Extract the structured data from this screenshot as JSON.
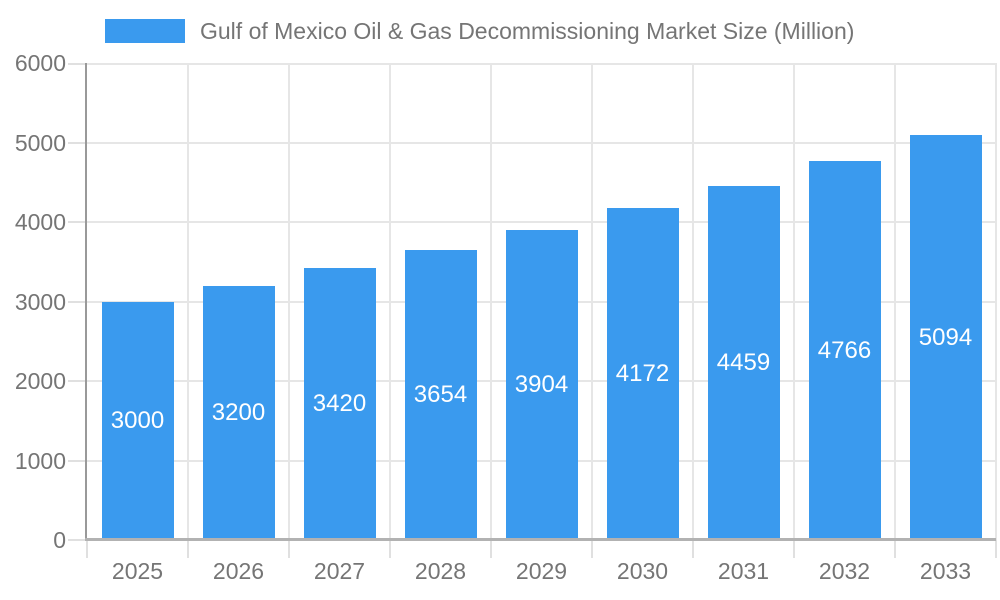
{
  "legend": {
    "series_label": "Gulf of Mexico Oil & Gas Decommissioning Market Size (Million)"
  },
  "chart_data": {
    "type": "bar",
    "title": "Gulf of Mexico Oil & Gas Decommissioning Market Size (Million)",
    "categories": [
      "2025",
      "2026",
      "2027",
      "2028",
      "2029",
      "2030",
      "2031",
      "2032",
      "2033"
    ],
    "values": [
      3000,
      3200,
      3420,
      3654,
      3904,
      4172,
      4459,
      4766,
      5094
    ],
    "value_labels": [
      "3000",
      "3200",
      "3420",
      "3654",
      "3904",
      "4172",
      "4459",
      "4766",
      "5094"
    ],
    "xlabel": "",
    "ylabel": "",
    "ylim": [
      0,
      6000
    ],
    "y_ticks": [
      0,
      1000,
      2000,
      3000,
      4000,
      5000,
      6000
    ],
    "grid": true,
    "legend_position": "top",
    "value_label_position": "inside-center"
  },
  "colors": {
    "bar": "#3A9AEE",
    "axis_text": "#757575",
    "gridline": "#e6e6e6",
    "tick": "#e0e0e0",
    "y_axis_line": "#999999",
    "x_axis_line": "#b2b2b2",
    "value_label": "#ffffff",
    "background": "#ffffff"
  }
}
